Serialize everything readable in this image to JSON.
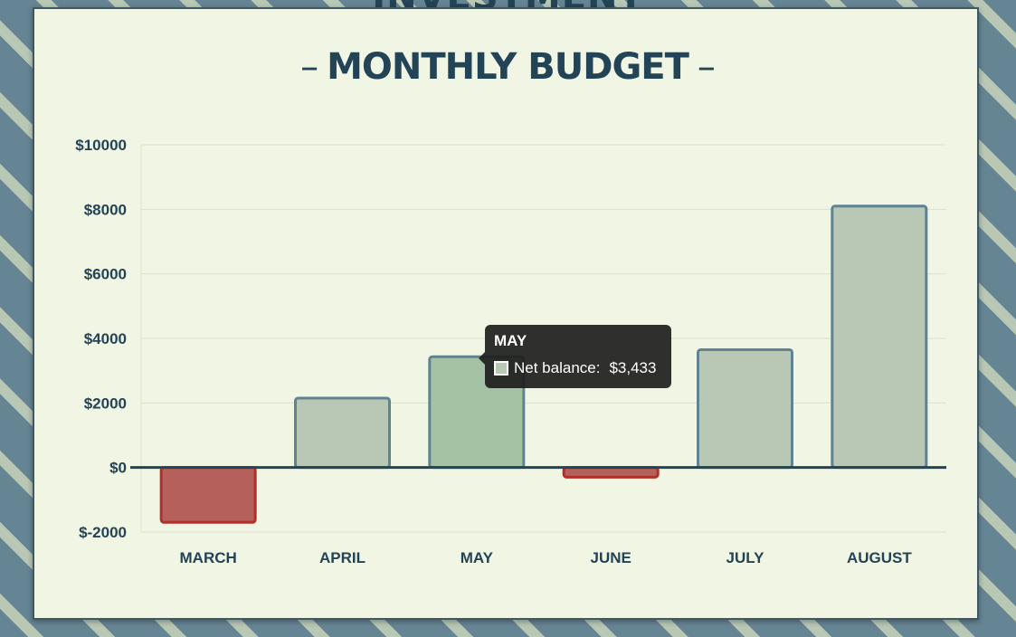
{
  "background_heading": "INVESTMENT",
  "card": {
    "title": "MONTHLY BUDGET",
    "title_dash_left": "–",
    "title_dash_right": "–"
  },
  "chart_data": {
    "type": "bar",
    "categories": [
      "MARCH",
      "APRIL",
      "MAY",
      "JUNE",
      "JULY",
      "AUGUST"
    ],
    "series": [
      {
        "name": "Net balance",
        "values": [
          -1700,
          2150,
          3433,
          -300,
          3650,
          8100
        ]
      }
    ],
    "ylim": [
      -2000,
      10000
    ],
    "yticks": [
      -2000,
      0,
      2000,
      4000,
      6000,
      8000,
      10000
    ],
    "ytick_labels": [
      "$-2000",
      "$0",
      "$2000",
      "$4000",
      "$6000",
      "$8000",
      "$10000"
    ],
    "grid": true,
    "highlighted_category": "MAY"
  },
  "colors": {
    "positive_fill": "#b9c8b5",
    "positive_border": "#5f8393",
    "highlight_fill": "#a6c2a4",
    "negative_fill": "#b5605a",
    "negative_border": "#b0302b",
    "axis_text": "#234456",
    "grid": "#dbe2d2",
    "zero_line": "#234456",
    "card_bg": "#f0f5e4"
  },
  "tooltip": {
    "title": "MAY",
    "series_label": "Net balance:",
    "value": "$3,433"
  }
}
